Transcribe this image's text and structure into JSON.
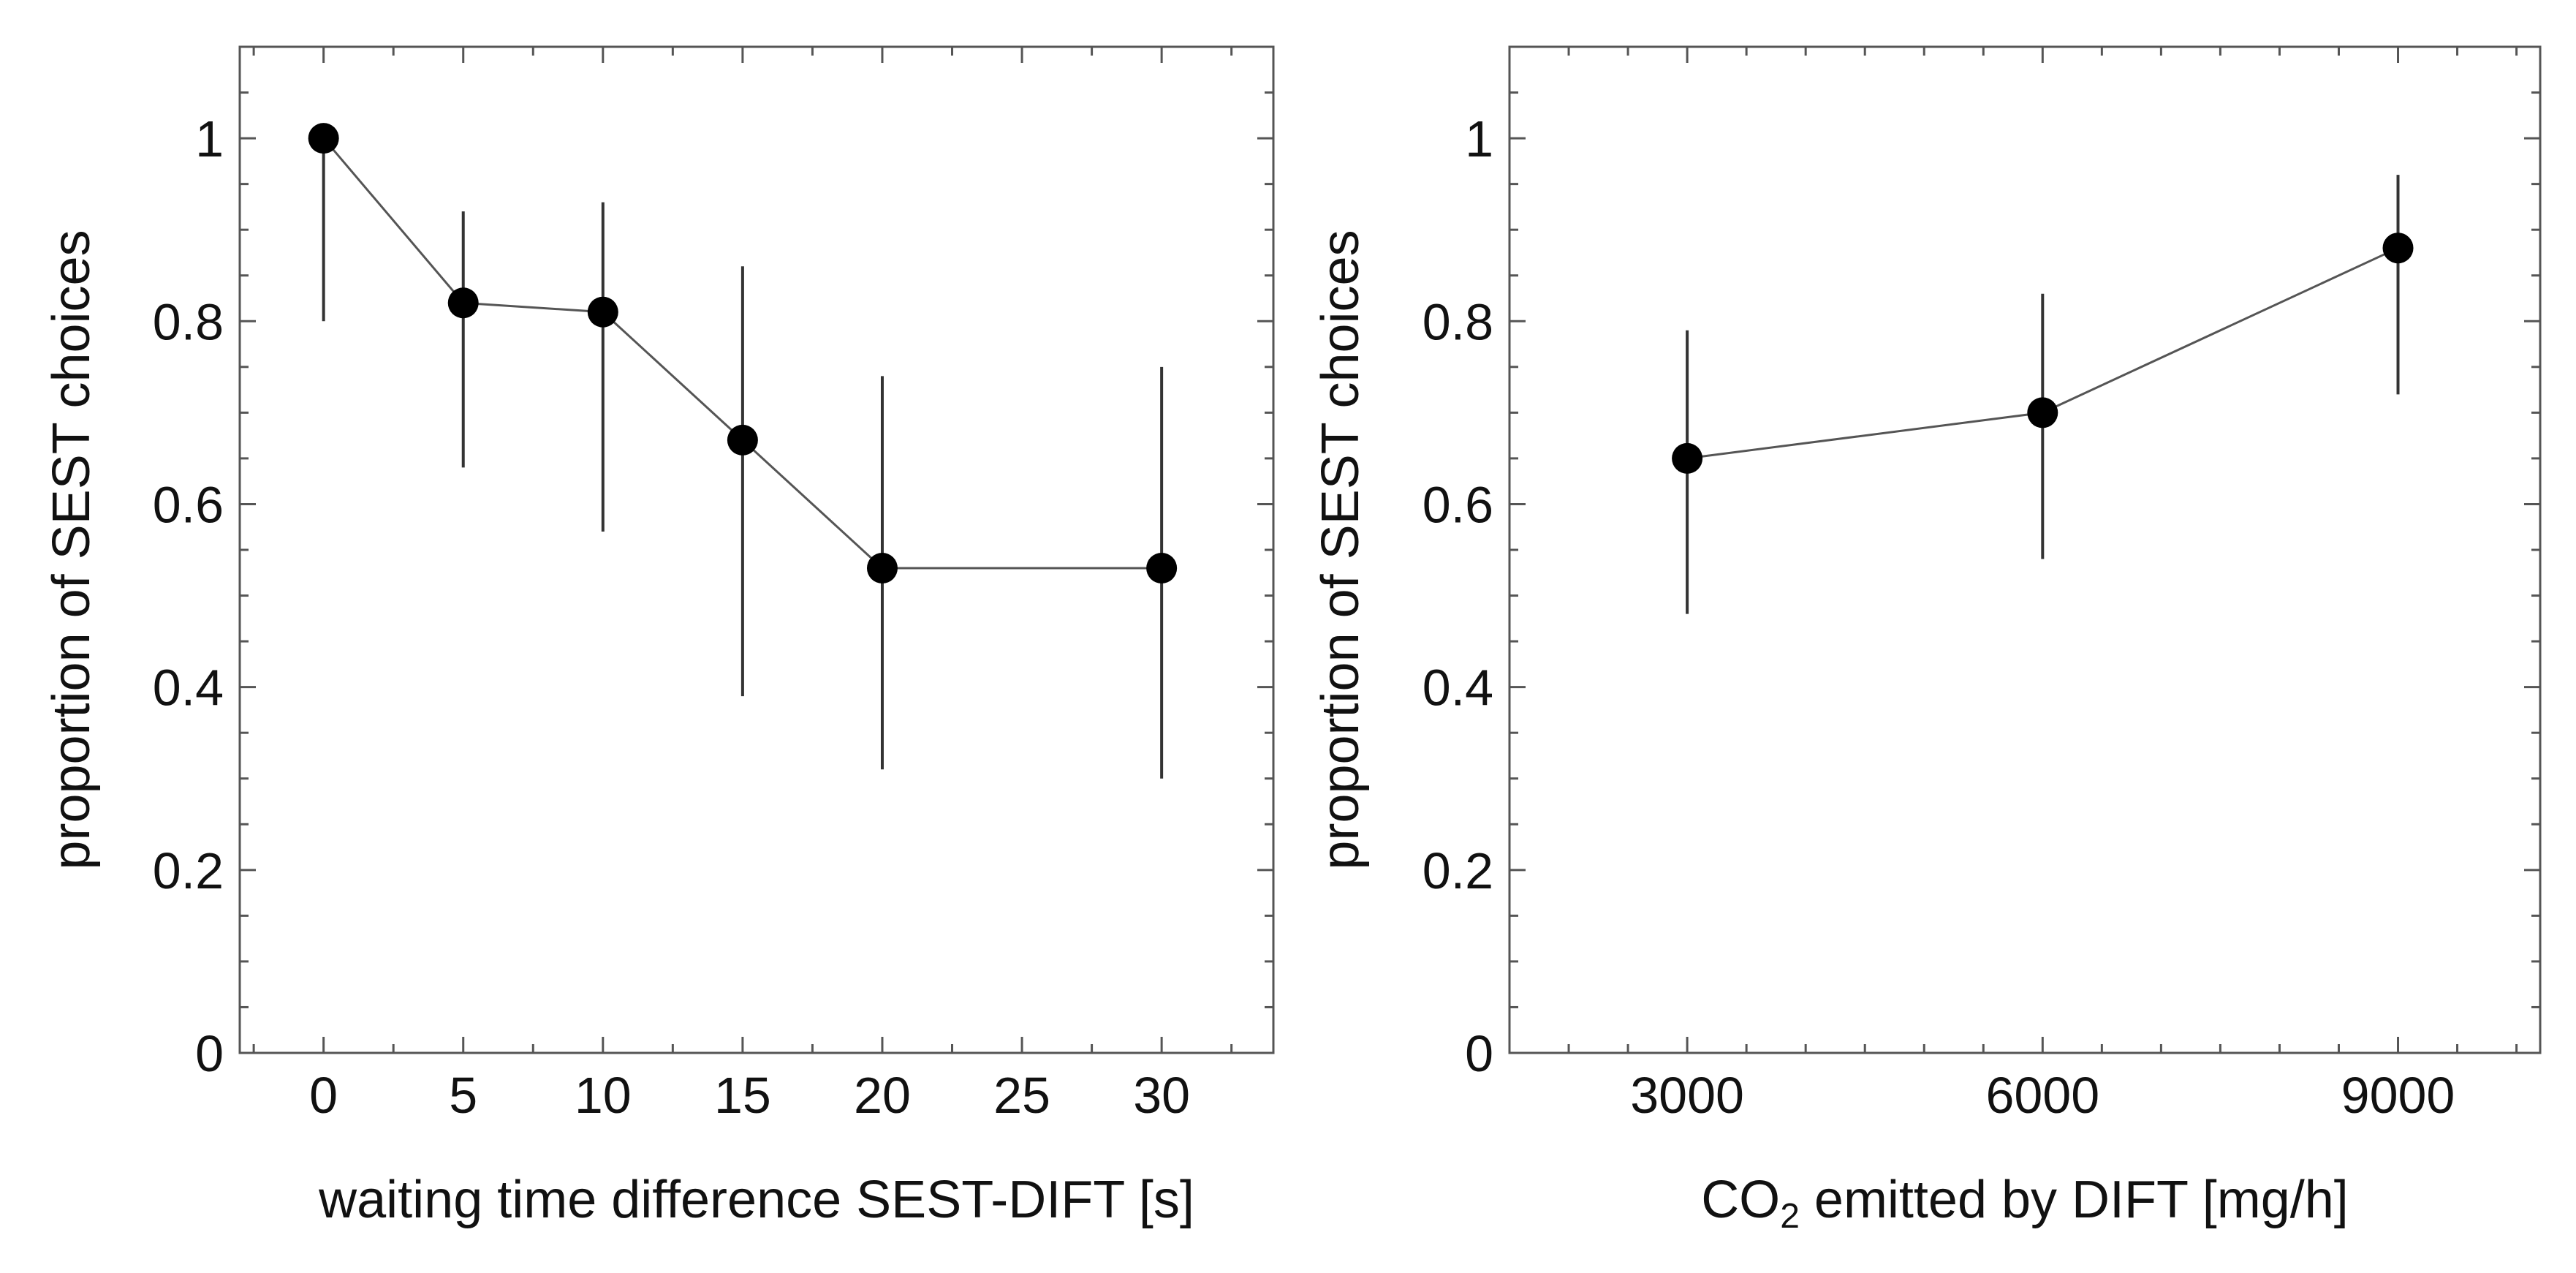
{
  "chart_data": [
    {
      "type": "line",
      "title": "",
      "xlabel": "waiting time difference SEST-DIFT [s]",
      "ylabel": "proportion of SEST choices",
      "xlim": [
        -3,
        34
      ],
      "ylim": [
        0,
        1.1
      ],
      "xticks": [
        0,
        5,
        10,
        15,
        20,
        25,
        30
      ],
      "xtick_labels": [
        "0",
        "5",
        "10",
        "15",
        "20",
        "25",
        "30"
      ],
      "yticks": [
        0,
        0.2,
        0.4,
        0.6,
        0.8,
        1
      ],
      "ytick_labels": [
        "0",
        "0.2",
        "0.4",
        "0.6",
        "0.8",
        "1"
      ],
      "x": [
        0,
        5,
        10,
        15,
        20,
        30
      ],
      "series": [
        {
          "name": "proportion",
          "values": [
            1.0,
            0.82,
            0.81,
            0.67,
            0.53,
            0.53
          ],
          "err_low": [
            0.8,
            0.64,
            0.57,
            0.39,
            0.31,
            0.3
          ],
          "err_high": [
            1.0,
            0.92,
            0.93,
            0.86,
            0.74,
            0.75
          ]
        }
      ]
    },
    {
      "type": "line",
      "title": "",
      "xlabel_main": "CO",
      "xlabel_sub": "2",
      "xlabel_rest": " emitted by DIFT [mg/h]",
      "ylabel": "proportion of SEST choices",
      "xlim": [
        1500,
        10200
      ],
      "ylim": [
        0,
        1.1
      ],
      "xticks": [
        3000,
        6000,
        9000
      ],
      "xtick_labels": [
        "3000",
        "6000",
        "9000"
      ],
      "yticks": [
        0,
        0.2,
        0.4,
        0.6,
        0.8,
        1
      ],
      "ytick_labels": [
        "0",
        "0.2",
        "0.4",
        "0.6",
        "0.8",
        "1"
      ],
      "x": [
        3000,
        6000,
        9000
      ],
      "series": [
        {
          "name": "proportion",
          "values": [
            0.65,
            0.7,
            0.88
          ],
          "err_low": [
            0.48,
            0.54,
            0.72
          ],
          "err_high": [
            0.79,
            0.83,
            0.96
          ]
        }
      ]
    }
  ]
}
